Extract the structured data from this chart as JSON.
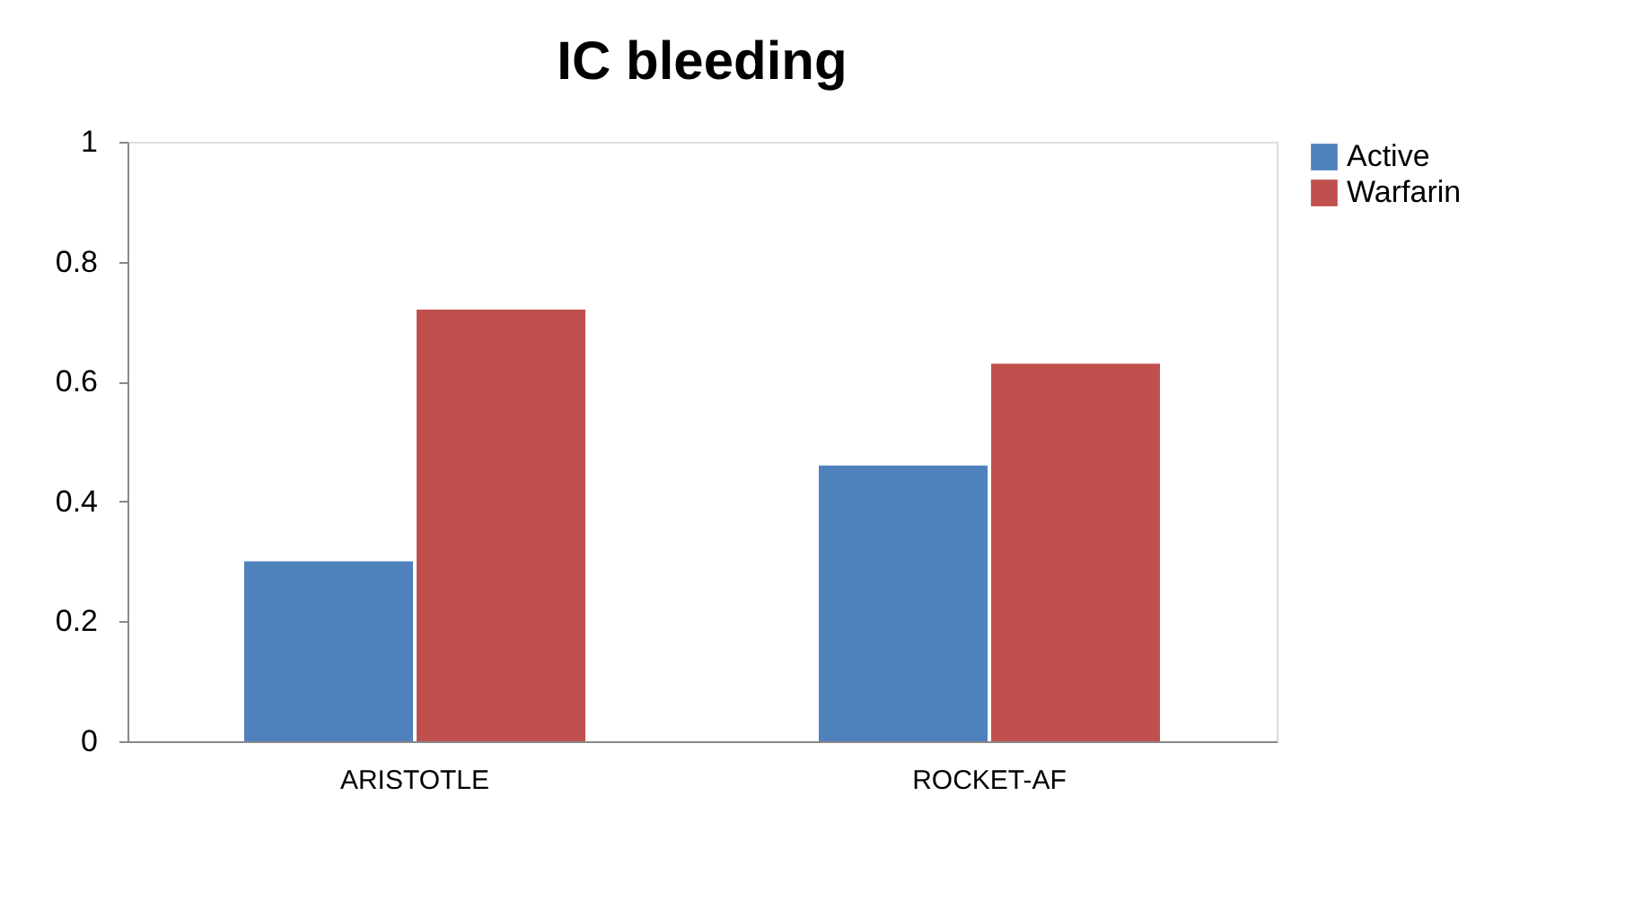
{
  "chart_data": {
    "type": "bar",
    "title": "IC bleeding",
    "categories": [
      "ARISTOTLE",
      "ROCKET-AF"
    ],
    "series": [
      {
        "name": "Active",
        "color": "#4f81bd",
        "values": [
          0.3,
          0.46
        ]
      },
      {
        "name": "Warfarin",
        "color": "#c0504d",
        "values": [
          0.72,
          0.63
        ]
      }
    ],
    "ylim": [
      0,
      1
    ],
    "yticks": [
      0,
      0.2,
      0.4,
      0.6,
      0.8,
      1
    ],
    "grid": false,
    "legend": "right"
  }
}
